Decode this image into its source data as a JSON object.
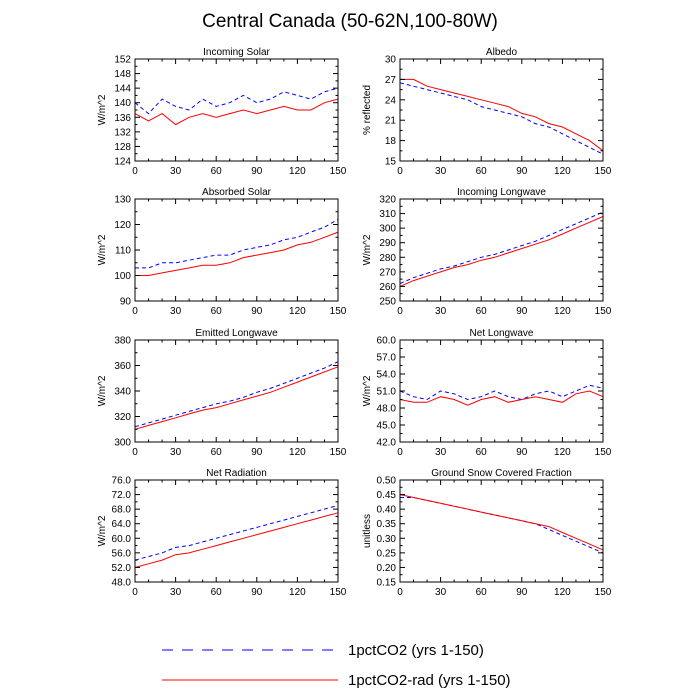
{
  "figure": {
    "title": "Central Canada (50-62N,100-80W)",
    "legend": [
      {
        "label": "1pctCO2 (yrs 1-150)",
        "color": "#0000ff",
        "dash": "dashed"
      },
      {
        "label": "1pctCO2-rad (yrs 1-150)",
        "color": "#ff0000",
        "dash": "solid"
      }
    ]
  },
  "chart_data": [
    {
      "type": "line",
      "title": "Incoming Solar",
      "ylabel": "W/m^2",
      "xlim": [
        0,
        150
      ],
      "ylim": [
        124,
        152
      ],
      "xticks": [
        0,
        30,
        60,
        90,
        120,
        150
      ],
      "yticks": [
        124,
        128,
        132,
        136,
        140,
        144,
        148,
        152
      ],
      "ytick_labels": [
        "124",
        "128",
        "132",
        "136",
        "140",
        "144",
        "148",
        "152"
      ],
      "series": [
        {
          "name": "1pctCO2 (yrs 1-150)",
          "color": "#0000ff",
          "x": [
            0,
            10,
            20,
            30,
            40,
            50,
            60,
            70,
            80,
            90,
            100,
            110,
            120,
            130,
            140,
            150
          ],
          "values": [
            140,
            137,
            141,
            139,
            138,
            141,
            139,
            140,
            142,
            140,
            141,
            143,
            142,
            141,
            143,
            144
          ]
        },
        {
          "name": "1pctCO2-rad (yrs 1-150)",
          "color": "#ff0000",
          "x": [
            0,
            10,
            20,
            30,
            40,
            50,
            60,
            70,
            80,
            90,
            100,
            110,
            120,
            130,
            140,
            150
          ],
          "values": [
            137,
            135,
            137,
            134,
            136,
            137,
            136,
            137,
            138,
            137,
            138,
            139,
            138,
            138,
            140,
            141
          ]
        }
      ]
    },
    {
      "type": "line",
      "title": "Albedo",
      "ylabel": "% reflected",
      "xlim": [
        0,
        150
      ],
      "ylim": [
        15,
        30
      ],
      "xticks": [
        0,
        30,
        60,
        90,
        120,
        150
      ],
      "yticks": [
        15,
        18,
        21,
        24,
        27,
        30
      ],
      "ytick_labels": [
        "15",
        "18",
        "21",
        "24",
        "27",
        "30"
      ],
      "series": [
        {
          "name": "1pctCO2 (yrs 1-150)",
          "color": "#0000ff",
          "x": [
            0,
            10,
            20,
            30,
            40,
            50,
            60,
            70,
            80,
            90,
            100,
            110,
            120,
            130,
            140,
            150
          ],
          "values": [
            26.5,
            26,
            25.5,
            25,
            24.5,
            24,
            23,
            22.5,
            22,
            21.5,
            20.5,
            20,
            19,
            18,
            17,
            16
          ]
        },
        {
          "name": "1pctCO2-rad (yrs 1-150)",
          "color": "#ff0000",
          "x": [
            0,
            10,
            20,
            30,
            40,
            50,
            60,
            70,
            80,
            90,
            100,
            110,
            120,
            130,
            140,
            150
          ],
          "values": [
            27,
            27,
            26,
            25.5,
            25,
            24.5,
            24,
            23.5,
            23,
            22,
            21.5,
            20.5,
            20,
            19,
            18,
            16.5
          ]
        }
      ]
    },
    {
      "type": "line",
      "title": "Absorbed Solar",
      "ylabel": "W/m^2",
      "xlim": [
        0,
        150
      ],
      "ylim": [
        90,
        130
      ],
      "xticks": [
        0,
        30,
        60,
        90,
        120,
        150
      ],
      "yticks": [
        90,
        100,
        110,
        120,
        130
      ],
      "ytick_labels": [
        "90",
        "100",
        "110",
        "120",
        "130"
      ],
      "series": [
        {
          "name": "1pctCO2 (yrs 1-150)",
          "color": "#0000ff",
          "x": [
            0,
            10,
            20,
            30,
            40,
            50,
            60,
            70,
            80,
            90,
            100,
            110,
            120,
            130,
            140,
            150
          ],
          "values": [
            103,
            103,
            105,
            105,
            106,
            107,
            108,
            108,
            110,
            111,
            112,
            114,
            115,
            117,
            119,
            122
          ]
        },
        {
          "name": "1pctCO2-rad (yrs 1-150)",
          "color": "#ff0000",
          "x": [
            0,
            10,
            20,
            30,
            40,
            50,
            60,
            70,
            80,
            90,
            100,
            110,
            120,
            130,
            140,
            150
          ],
          "values": [
            100,
            100,
            101,
            102,
            103,
            104,
            104,
            105,
            107,
            108,
            109,
            110,
            112,
            113,
            115,
            117
          ]
        }
      ]
    },
    {
      "type": "line",
      "title": "Incoming Longwave",
      "ylabel": "W/m^2",
      "xlim": [
        0,
        150
      ],
      "ylim": [
        250,
        320
      ],
      "xticks": [
        0,
        30,
        60,
        90,
        120,
        150
      ],
      "yticks": [
        250,
        260,
        270,
        280,
        290,
        300,
        310,
        320
      ],
      "ytick_labels": [
        "250",
        "260",
        "270",
        "280",
        "290",
        "300",
        "310",
        "320"
      ],
      "series": [
        {
          "name": "1pctCO2 (yrs 1-150)",
          "color": "#0000ff",
          "x": [
            0,
            10,
            20,
            30,
            40,
            50,
            60,
            70,
            80,
            90,
            100,
            110,
            120,
            130,
            140,
            150
          ],
          "values": [
            262,
            266,
            269,
            272,
            274,
            277,
            280,
            282,
            285,
            288,
            291,
            295,
            299,
            303,
            307,
            311
          ]
        },
        {
          "name": "1pctCO2-rad (yrs 1-150)",
          "color": "#ff0000",
          "x": [
            0,
            10,
            20,
            30,
            40,
            50,
            60,
            70,
            80,
            90,
            100,
            110,
            120,
            130,
            140,
            150
          ],
          "values": [
            260,
            264,
            267,
            270,
            273,
            275,
            278,
            280,
            283,
            286,
            289,
            292,
            296,
            300,
            304,
            308
          ]
        }
      ]
    },
    {
      "type": "line",
      "title": "Emitted Longwave",
      "ylabel": "W/m^2",
      "xlim": [
        0,
        150
      ],
      "ylim": [
        300,
        380
      ],
      "xticks": [
        0,
        30,
        60,
        90,
        120,
        150
      ],
      "yticks": [
        300,
        320,
        340,
        360,
        380
      ],
      "ytick_labels": [
        "300",
        "320",
        "340",
        "360",
        "380"
      ],
      "series": [
        {
          "name": "1pctCO2 (yrs 1-150)",
          "color": "#0000ff",
          "x": [
            0,
            10,
            20,
            30,
            40,
            50,
            60,
            70,
            80,
            90,
            100,
            110,
            120,
            130,
            140,
            150
          ],
          "values": [
            312,
            315,
            318,
            321,
            324,
            327,
            330,
            332,
            335,
            339,
            342,
            346,
            350,
            354,
            358,
            363
          ]
        },
        {
          "name": "1pctCO2-rad (yrs 1-150)",
          "color": "#ff0000",
          "x": [
            0,
            10,
            20,
            30,
            40,
            50,
            60,
            70,
            80,
            90,
            100,
            110,
            120,
            130,
            140,
            150
          ],
          "values": [
            310,
            313,
            316,
            319,
            322,
            325,
            327,
            330,
            333,
            336,
            339,
            343,
            347,
            351,
            355,
            359
          ]
        }
      ]
    },
    {
      "type": "line",
      "title": "Net Longwave",
      "ylabel": "W/m^2",
      "xlim": [
        0,
        150
      ],
      "ylim": [
        42,
        60
      ],
      "xticks": [
        0,
        30,
        60,
        90,
        120,
        150
      ],
      "yticks": [
        42,
        45,
        48,
        51,
        54,
        57,
        60
      ],
      "ytick_labels": [
        "42.0",
        "45.0",
        "48.0",
        "51.0",
        "54.0",
        "57.0",
        "60.0"
      ],
      "series": [
        {
          "name": "1pctCO2 (yrs 1-150)",
          "color": "#0000ff",
          "x": [
            0,
            10,
            20,
            30,
            40,
            50,
            60,
            70,
            80,
            90,
            100,
            110,
            120,
            130,
            140,
            150
          ],
          "values": [
            51,
            50,
            49.5,
            51,
            50.5,
            49.5,
            50,
            51,
            50,
            49.5,
            50.5,
            51,
            50,
            51,
            52,
            51.5
          ]
        },
        {
          "name": "1pctCO2-rad (yrs 1-150)",
          "color": "#ff0000",
          "x": [
            0,
            10,
            20,
            30,
            40,
            50,
            60,
            70,
            80,
            90,
            100,
            110,
            120,
            130,
            140,
            150
          ],
          "values": [
            49.5,
            49,
            49,
            50,
            49.5,
            48.5,
            49.5,
            50,
            49,
            49.5,
            50,
            49.5,
            49,
            50.5,
            51,
            50
          ]
        }
      ]
    },
    {
      "type": "line",
      "title": "Net Radiation",
      "ylabel": "W/m^2",
      "xlim": [
        0,
        150
      ],
      "ylim": [
        48,
        76
      ],
      "xticks": [
        0,
        30,
        60,
        90,
        120,
        150
      ],
      "yticks": [
        48,
        52,
        56,
        60,
        64,
        68,
        72,
        76
      ],
      "ytick_labels": [
        "48.0",
        "52.0",
        "56.0",
        "60.0",
        "64.0",
        "68.0",
        "72.0",
        "76.0"
      ],
      "series": [
        {
          "name": "1pctCO2 (yrs 1-150)",
          "color": "#0000ff",
          "x": [
            0,
            10,
            20,
            30,
            40,
            50,
            60,
            70,
            80,
            90,
            100,
            110,
            120,
            130,
            140,
            150
          ],
          "values": [
            54,
            55,
            56,
            57.5,
            58,
            59,
            60,
            61,
            62,
            63,
            64,
            65,
            66,
            67,
            68,
            69
          ]
        },
        {
          "name": "1pctCO2-rad (yrs 1-150)",
          "color": "#ff0000",
          "x": [
            0,
            10,
            20,
            30,
            40,
            50,
            60,
            70,
            80,
            90,
            100,
            110,
            120,
            130,
            140,
            150
          ],
          "values": [
            52,
            53,
            54,
            55.5,
            56,
            57,
            58,
            59,
            60,
            61,
            62,
            63,
            64,
            65,
            66,
            67
          ]
        }
      ]
    },
    {
      "type": "line",
      "title": "Ground Snow Covered Fraction",
      "ylabel": "unitless",
      "xlim": [
        0,
        150
      ],
      "ylim": [
        0.15,
        0.5
      ],
      "xticks": [
        0,
        30,
        60,
        90,
        120,
        150
      ],
      "yticks": [
        0.15,
        0.2,
        0.25,
        0.3,
        0.35,
        0.4,
        0.45,
        0.5
      ],
      "ytick_labels": [
        "0.15",
        "0.20",
        "0.25",
        "0.30",
        "0.35",
        "0.40",
        "0.45",
        "0.50"
      ],
      "series": [
        {
          "name": "1pctCO2 (yrs 1-150)",
          "color": "#0000ff",
          "x": [
            0,
            10,
            20,
            30,
            40,
            50,
            60,
            70,
            80,
            90,
            100,
            110,
            120,
            130,
            140,
            150
          ],
          "values": [
            0.44,
            0.44,
            0.43,
            0.42,
            0.41,
            0.4,
            0.39,
            0.38,
            0.37,
            0.36,
            0.35,
            0.33,
            0.31,
            0.29,
            0.27,
            0.25
          ]
        },
        {
          "name": "1pctCO2-rad (yrs 1-150)",
          "color": "#ff0000",
          "x": [
            0,
            10,
            20,
            30,
            40,
            50,
            60,
            70,
            80,
            90,
            100,
            110,
            120,
            130,
            140,
            150
          ],
          "values": [
            0.45,
            0.44,
            0.43,
            0.42,
            0.41,
            0.4,
            0.39,
            0.38,
            0.37,
            0.36,
            0.35,
            0.34,
            0.32,
            0.3,
            0.28,
            0.26
          ]
        }
      ]
    }
  ]
}
